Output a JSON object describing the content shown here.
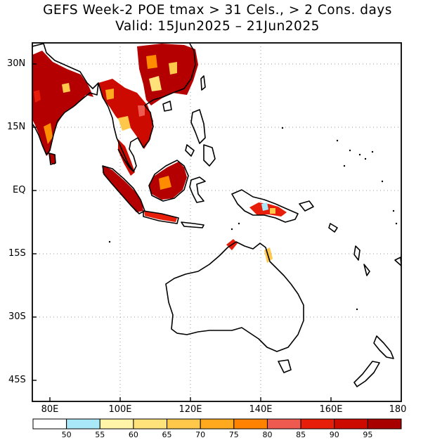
{
  "title": "GEFS Week-2 POE tmax > 31 Cels., > 2 Cons. days",
  "subtitle": "Valid: 15Jun2025 – 21Jun2025",
  "map": {
    "lat_labels": [
      "30N",
      "15N",
      "EQ",
      "15S",
      "30S",
      "45S"
    ],
    "lon_labels": [
      "80E",
      "100E",
      "120E",
      "140E",
      "160E",
      "180"
    ],
    "extent": {
      "lon_min": 75,
      "lon_max": 180,
      "lat_min": -50,
      "lat_max": 35
    }
  },
  "colorbar": {
    "labels": [
      "50",
      "55",
      "60",
      "65",
      "70",
      "75",
      "80",
      "85",
      "90",
      "95"
    ],
    "colors": [
      "#ffffff",
      "#a8e8f8",
      "#fff4a8",
      "#ffe27a",
      "#ffc84a",
      "#ffaa1e",
      "#ff8200",
      "#ee5a50",
      "#e61e0a",
      "#cc0a00",
      "#a80000"
    ]
  }
}
